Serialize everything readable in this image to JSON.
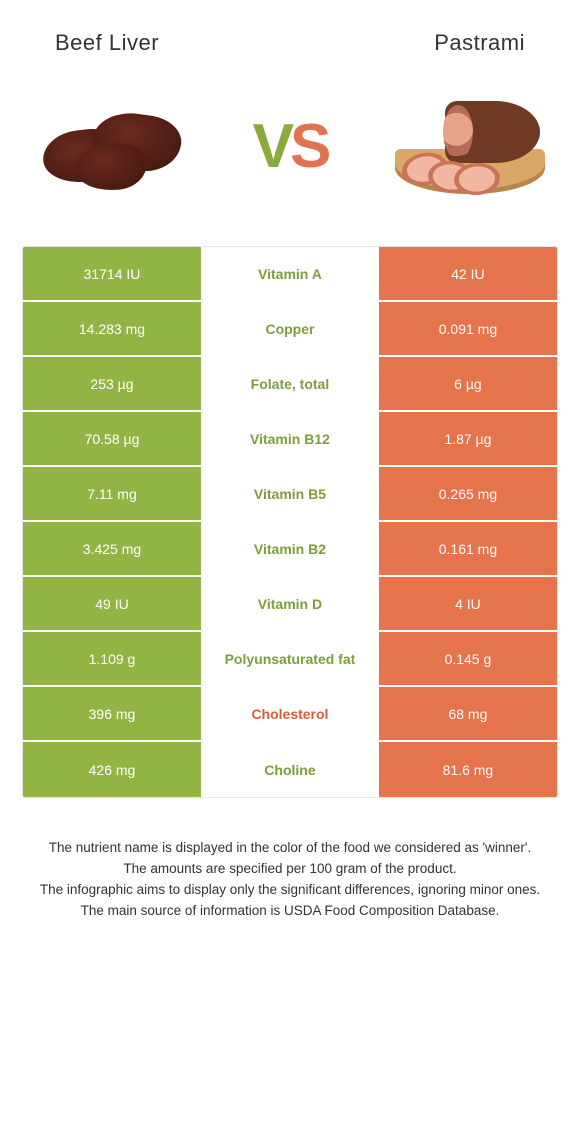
{
  "header": {
    "left": "Beef Liver",
    "right": "Pastrami"
  },
  "vs": {
    "v": "V",
    "s": "S"
  },
  "colors": {
    "left_bg": "#91b544",
    "right_bg": "#e5744d",
    "left_text": "#7e9e3a",
    "right_text": "#d1603c"
  },
  "rows": [
    {
      "left": "31714 IU",
      "mid": "Vitamin A",
      "right": "42 IU",
      "winner": "left"
    },
    {
      "left": "14.283 mg",
      "mid": "Copper",
      "right": "0.091 mg",
      "winner": "left"
    },
    {
      "left": "253 µg",
      "mid": "Folate, total",
      "right": "6 µg",
      "winner": "left"
    },
    {
      "left": "70.58 µg",
      "mid": "Vitamin B12",
      "right": "1.87 µg",
      "winner": "left"
    },
    {
      "left": "7.11 mg",
      "mid": "Vitamin B5",
      "right": "0.265 mg",
      "winner": "left"
    },
    {
      "left": "3.425 mg",
      "mid": "Vitamin B2",
      "right": "0.161 mg",
      "winner": "left"
    },
    {
      "left": "49 IU",
      "mid": "Vitamin D",
      "right": "4 IU",
      "winner": "left"
    },
    {
      "left": "1.109 g",
      "mid": "Polyunsaturated fat",
      "right": "0.145 g",
      "winner": "left"
    },
    {
      "left": "396 mg",
      "mid": "Cholesterol",
      "right": "68 mg",
      "winner": "right"
    },
    {
      "left": "426 mg",
      "mid": "Choline",
      "right": "81.6 mg",
      "winner": "left"
    }
  ],
  "footer": {
    "l1": "The nutrient name is displayed in the color of the food we considered as 'winner'.",
    "l2": "The amounts are specified per 100 gram of the product.",
    "l3": "The infographic aims to display only the significant differences, ignoring minor ones.",
    "l4": "The main source of information is USDA Food Composition Database."
  }
}
